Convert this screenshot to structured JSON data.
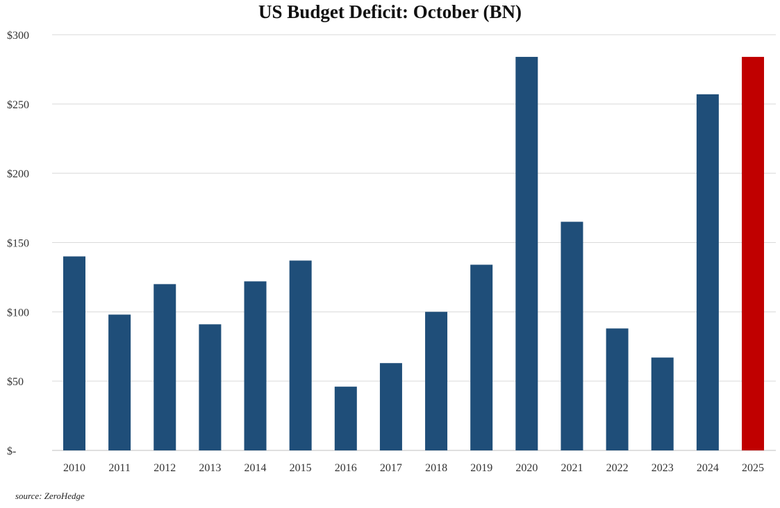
{
  "chart_data": {
    "type": "bar",
    "title": "US Budget Deficit: October  (BN)",
    "categories": [
      "2010",
      "2011",
      "2012",
      "2013",
      "2014",
      "2015",
      "2016",
      "2017",
      "2018",
      "2019",
      "2020",
      "2021",
      "2022",
      "2023",
      "2024",
      "2025"
    ],
    "series": [
      {
        "name": "US Budget Deficit: October",
        "values": [
          140,
          98,
          120,
          91,
          122,
          137,
          46,
          63,
          100,
          134,
          284,
          165,
          88,
          67,
          257,
          284
        ],
        "colors": [
          "#1f4e79",
          "#1f4e79",
          "#1f4e79",
          "#1f4e79",
          "#1f4e79",
          "#1f4e79",
          "#1f4e79",
          "#1f4e79",
          "#1f4e79",
          "#1f4e79",
          "#1f4e79",
          "#1f4e79",
          "#1f4e79",
          "#1f4e79",
          "#1f4e79",
          "#c00000"
        ]
      }
    ],
    "xlabel": "",
    "ylabel": "",
    "ylim": [
      0,
      300
    ],
    "yticks": [
      0,
      50,
      100,
      150,
      200,
      250,
      300
    ],
    "ytick_labels": [
      "$-",
      "$50",
      "$100",
      "$150",
      "$200",
      "$250",
      "$300"
    ],
    "grid": true,
    "legend": "none"
  },
  "source": "source: ZeroHedge"
}
